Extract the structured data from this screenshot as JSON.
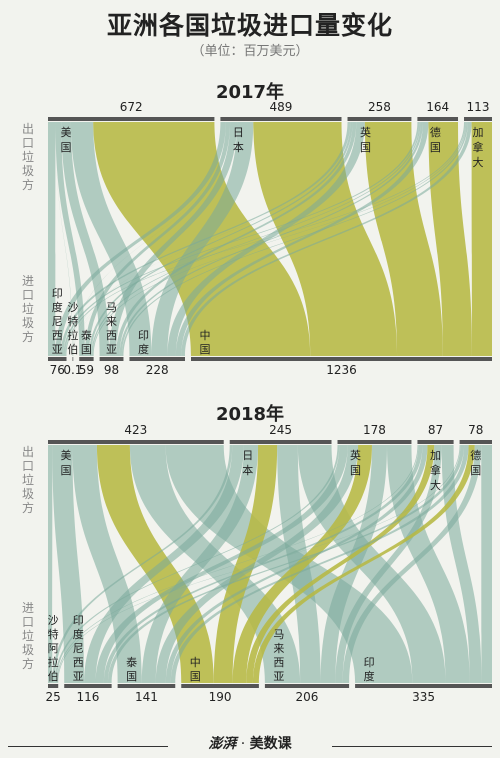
{
  "title": "亚洲各国垃圾进口量变化",
  "subtitle": "（单位：百万美元）",
  "footer": {
    "brand": "澎湃",
    "divider": "·",
    "label": "美数课"
  },
  "colors": {
    "green": "#b6b843",
    "teal": "#7aa99b",
    "bar": "#555555",
    "bg": "#f2f3ee"
  },
  "chart_data": [
    {
      "type": "sankey",
      "title": "2017年",
      "axis_top": "出口垃圾方",
      "axis_bottom": "进口垃圾方",
      "exporters": [
        {
          "name": "美国",
          "value": 672
        },
        {
          "name": "日本",
          "value": 489
        },
        {
          "name": "英国",
          "value": 258
        },
        {
          "name": "德国",
          "value": 164
        },
        {
          "name": "加拿大",
          "value": 113
        }
      ],
      "importers": [
        {
          "name": "印度尼西亚",
          "value": 76
        },
        {
          "name": "沙特拉伯",
          "value": 0.1
        },
        {
          "name": "泰国",
          "value": 59
        },
        {
          "name": "马来西亚",
          "value": 98
        },
        {
          "name": "印度",
          "value": 228
        },
        {
          "name": "中国",
          "value": 1236
        }
      ],
      "highlight": "中国"
    },
    {
      "type": "sankey",
      "title": "2018年",
      "axis_top": "出口垃圾方",
      "axis_bottom": "进口垃圾方",
      "exporters": [
        {
          "name": "美国",
          "value": 423
        },
        {
          "name": "日本",
          "value": 245
        },
        {
          "name": "英国",
          "value": 178
        },
        {
          "name": "加拿大",
          "value": 87
        },
        {
          "name": "德国",
          "value": 78
        }
      ],
      "importers": [
        {
          "name": "沙特阿拉伯",
          "value": 25
        },
        {
          "name": "印度尼西亚",
          "value": 116
        },
        {
          "name": "泰国",
          "value": 141
        },
        {
          "name": "中国",
          "value": 190
        },
        {
          "name": "马来西亚",
          "value": 206
        },
        {
          "name": "印度",
          "value": 335
        }
      ],
      "highlight": "中国"
    }
  ]
}
